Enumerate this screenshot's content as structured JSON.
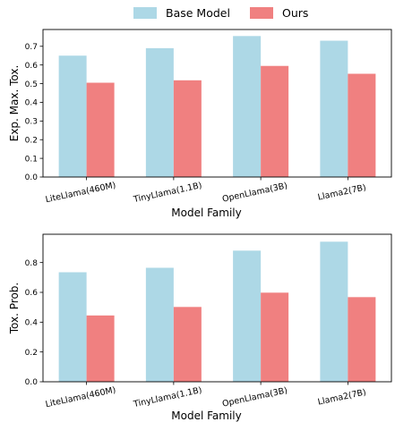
{
  "legend": {
    "position": "top-center",
    "entries": [
      {
        "label": "Base Model",
        "color": "#add8e6"
      },
      {
        "label": "Ours",
        "color": "#f08080"
      }
    ]
  },
  "chart_data": [
    {
      "type": "bar",
      "categories": [
        "LiteLlama(460M)",
        "TinyLlama(1.1B)",
        "OpenLlama(3B)",
        "Llama2(7B)"
      ],
      "series": [
        {
          "name": "Base Model",
          "color": "#add8e6",
          "values": [
            0.65,
            0.69,
            0.755,
            0.73
          ]
        },
        {
          "name": "Ours",
          "color": "#f08080",
          "values": [
            0.505,
            0.518,
            0.595,
            0.553
          ]
        }
      ],
      "xlabel": "Model Family",
      "ylabel": "Exp. Max. Tox.",
      "ylim": [
        0,
        0.79
      ],
      "yticks": [
        0.0,
        0.1,
        0.2,
        0.3,
        0.4,
        0.5,
        0.6,
        0.7
      ],
      "ytick_labels": [
        "0.0",
        "0.1",
        "0.2",
        "0.3",
        "0.4",
        "0.5",
        "0.6",
        "0.7"
      ],
      "grid": false
    },
    {
      "type": "bar",
      "categories": [
        "LiteLlama(460M)",
        "TinyLlama(1.1B)",
        "OpenLlama(3B)",
        "Llama2(7B)"
      ],
      "series": [
        {
          "name": "Base Model",
          "color": "#add8e6",
          "values": [
            0.735,
            0.765,
            0.88,
            0.94
          ]
        },
        {
          "name": "Ours",
          "color": "#f08080",
          "values": [
            0.445,
            0.502,
            0.598,
            0.568
          ]
        }
      ],
      "xlabel": "Model Family",
      "ylabel": "Tox. Prob.",
      "ylim": [
        0,
        0.99
      ],
      "yticks": [
        0.0,
        0.2,
        0.4,
        0.6,
        0.8
      ],
      "ytick_labels": [
        "0.0",
        "0.2",
        "0.4",
        "0.6",
        "0.8"
      ],
      "grid": false
    }
  ]
}
